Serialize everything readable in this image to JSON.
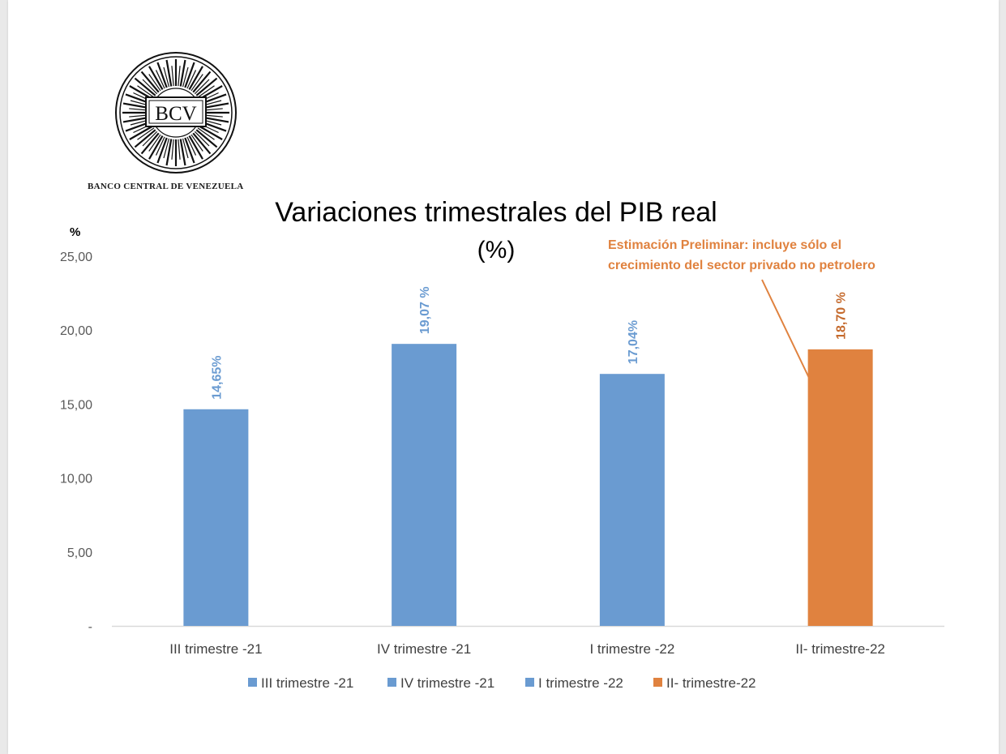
{
  "logo": {
    "text": "BCV",
    "icon": "bcv-seal-logo"
  },
  "bank_name": "BANCO CENTRAL DE VENEZUELA",
  "annotation": {
    "lines": [
      "Estimación Preliminar: incluye sólo el",
      "crecimiento del sector privado no petrolero"
    ],
    "color": "#E0823F"
  },
  "chart_data": {
    "type": "bar",
    "title": "Variaciones trimestrales del PIB real",
    "subtitle": "(%)",
    "ylabel": "%",
    "ylim": [
      0,
      25
    ],
    "yticks": [
      0,
      5,
      10,
      15,
      20,
      25
    ],
    "ytick_labels": [
      "-",
      "5,00",
      "10,00",
      "15,00",
      "20,00",
      "25,00"
    ],
    "categories": [
      "III trimestre -21",
      "IV trimestre -21",
      "I trimestre -22",
      "II- trimestre-22"
    ],
    "values": [
      14.65,
      19.07,
      17.04,
      18.7
    ],
    "data_labels": [
      "14,65%",
      "19,07 %",
      "17,04%",
      "18,70 %"
    ],
    "colors": [
      "#6A9BD1",
      "#6A9BD1",
      "#6A9BD1",
      "#E0823F"
    ],
    "label_colors": [
      "#6A9BD1",
      "#6A9BD1",
      "#6A9BD1",
      "#C56A2D"
    ],
    "legend": [
      "III trimestre -21",
      "IV trimestre -21",
      "I trimestre -22",
      "II- trimestre-22"
    ],
    "legend_position": "bottom",
    "grid": false
  }
}
